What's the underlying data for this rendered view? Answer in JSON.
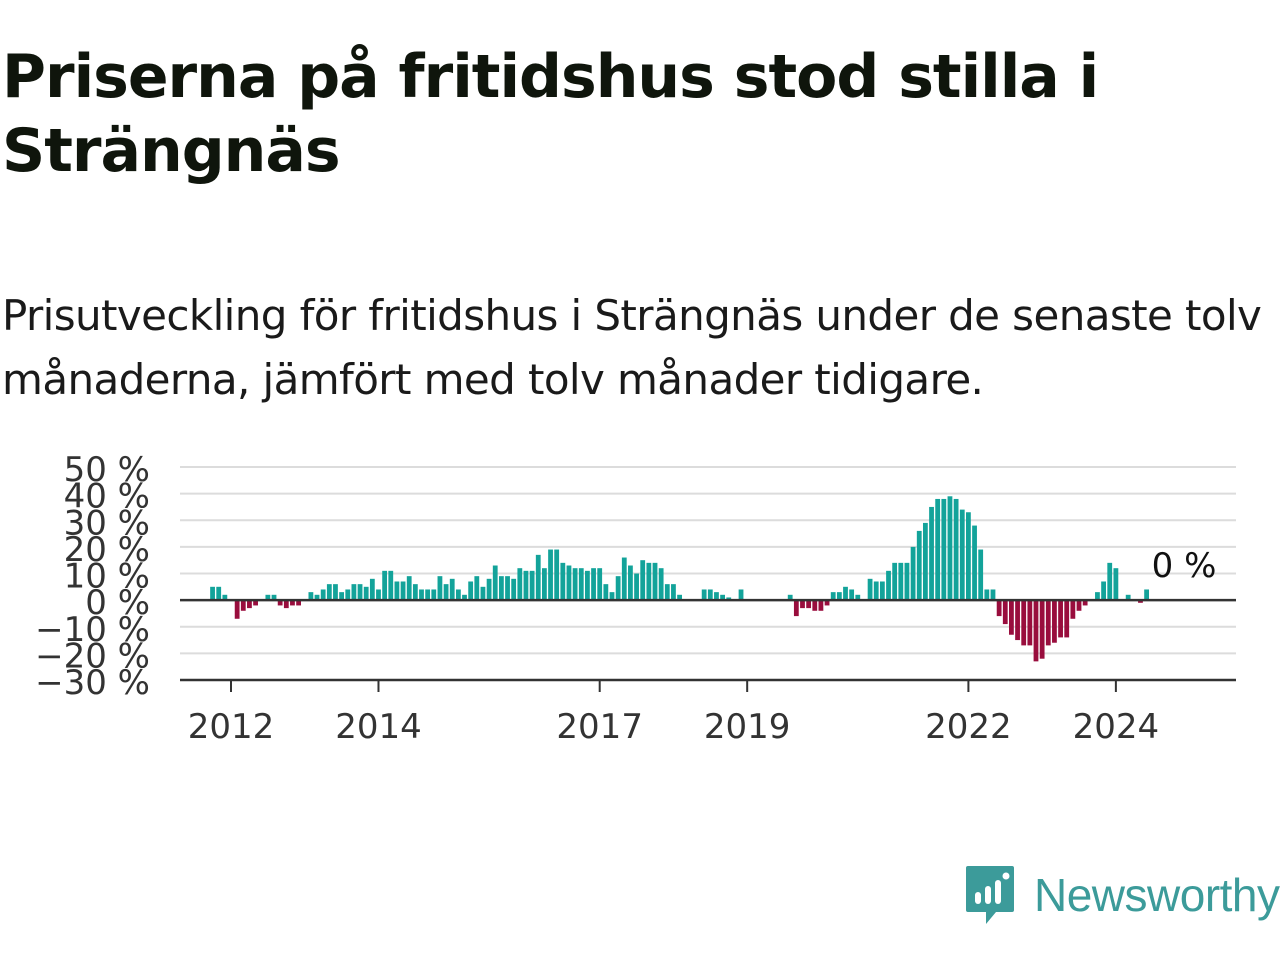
{
  "header": {
    "title": "Priserna på fritidshus stod stilla i Strängnäs",
    "subtitle": "Prisutveckling för fritidshus i Strängnäs under de senaste tolv månaderna, jämfört med tolv månader tidigare."
  },
  "brand": {
    "name": "Newsworthy",
    "color": "#3c9b9a"
  },
  "colors": {
    "positive": "#13a39a",
    "negative": "#990d3d",
    "grid": "#dcdcdc",
    "axis": "#333333"
  },
  "chart_data": {
    "type": "bar",
    "ylim": [
      -30,
      50
    ],
    "yticks": [
      -30,
      -20,
      -10,
      0,
      10,
      20,
      30,
      40,
      50
    ],
    "ytick_labels": [
      "−30 %",
      "−20 %",
      "−10 %",
      "0 %",
      "10 %",
      "20 %",
      "30 %",
      "40 %",
      "50 %"
    ],
    "xticks": [
      2012,
      2014,
      2017,
      2019,
      2022,
      2024
    ],
    "grid": true,
    "start": "2011-10",
    "end": "2024-09",
    "last_value_label": "0 %",
    "values": [
      5,
      5,
      2,
      0,
      -7,
      -4,
      -3,
      -2,
      0,
      2,
      2,
      -2,
      -3,
      -2,
      -2,
      0,
      3,
      2,
      4,
      6,
      6,
      3,
      4,
      6,
      6,
      5,
      8,
      4,
      11,
      11,
      7,
      7,
      9,
      6,
      4,
      4,
      4,
      9,
      6,
      8,
      4,
      2,
      7,
      9,
      5,
      8,
      13,
      9,
      9,
      8,
      12,
      11,
      11,
      17,
      12,
      19,
      19,
      14,
      13,
      12,
      12,
      11,
      12,
      12,
      6,
      3,
      9,
      16,
      13,
      10,
      15,
      14,
      14,
      12,
      6,
      6,
      2,
      0,
      0,
      0,
      4,
      4,
      3,
      2,
      1,
      0,
      4,
      0,
      0,
      0,
      0,
      0,
      0,
      0,
      2,
      -6,
      -3,
      -3,
      -4,
      -4,
      -2,
      3,
      3,
      5,
      4,
      2,
      0,
      8,
      7,
      7,
      11,
      14,
      14,
      14,
      20,
      26,
      29,
      35,
      38,
      38,
      39,
      38,
      34,
      33,
      28,
      19,
      4,
      4,
      -6,
      -9,
      -13,
      -15,
      -17,
      -17,
      -23,
      -22,
      -17,
      -16,
      -14,
      -14,
      -7,
      -4,
      -2,
      0,
      3,
      7,
      14,
      12,
      0,
      2,
      0,
      -1,
      4,
      0
    ]
  }
}
